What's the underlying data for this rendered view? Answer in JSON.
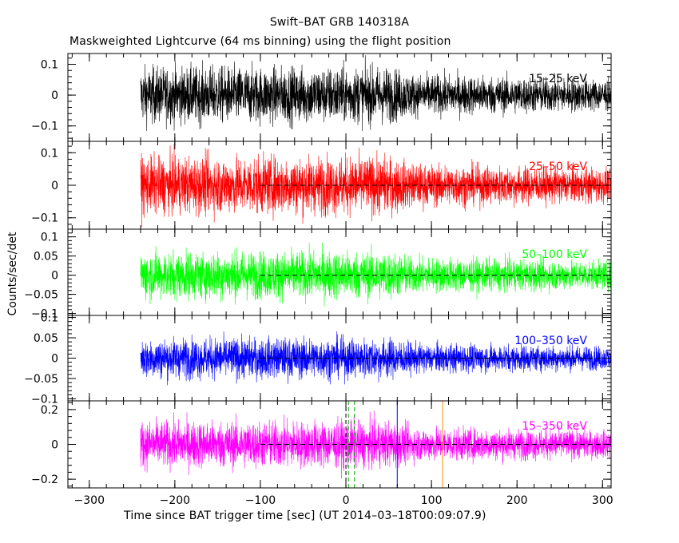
{
  "title": "Swift–BAT GRB 140318A",
  "subtitle": "Maskweighted Lightcurve (64 ms binning) using the flight position",
  "xlabel": "Time since BAT trigger time [sec] (UT 2014–03–18T00:09:07.9)",
  "ylabel": "Counts/sec/det",
  "chart_data": {
    "type": "line",
    "title": "Swift–BAT GRB 140318A",
    "subtitle": "Maskweighted Lightcurve (64 ms binning) using the flight position",
    "xlabel": "Time since BAT trigger time [sec] (UT 2014–03–18T00:09:07.9)",
    "ylabel": "Counts/sec/det",
    "xlim": [
      -325,
      310
    ],
    "x_ticks": [
      -300,
      -200,
      -100,
      0,
      100,
      200,
      300
    ],
    "x_tick_labels": [
      "−300",
      "−200",
      "−100",
      "0",
      "100",
      "200",
      "300"
    ],
    "data_range_x": [
      -240,
      310
    ],
    "binning_sec": 0.064,
    "grid": false,
    "panels": [
      {
        "band": "15–25 keV",
        "color": "#000000",
        "ylim": [
          -0.15,
          0.135
        ],
        "y_ticks": [
          -0.1,
          0,
          0.1
        ],
        "y_tick_labels": [
          "−0.1",
          "0",
          "0.1"
        ],
        "noise_envelope": [
          [
            -240,
            0.088
          ],
          [
            50,
            0.088
          ],
          [
            80,
            0.065
          ],
          [
            310,
            0.05
          ]
        ],
        "zero_line": false
      },
      {
        "band": "25–50 keV",
        "color": "#ff0000",
        "ylim": [
          -0.135,
          0.135
        ],
        "y_ticks": [
          -0.1,
          0,
          0.1
        ],
        "y_tick_labels": [
          "−0.1",
          "0",
          "0.1"
        ],
        "noise_envelope": [
          [
            -240,
            0.085
          ],
          [
            50,
            0.085
          ],
          [
            80,
            0.063
          ],
          [
            310,
            0.05
          ]
        ],
        "zero_line": true
      },
      {
        "band": "50–100 keV",
        "color": "#00ff00",
        "ylim": [
          -0.105,
          0.12
        ],
        "y_ticks": [
          -0.1,
          -0.05,
          0,
          0.05,
          0.1
        ],
        "y_tick_labels": [
          "−0.1",
          "−0.05",
          "0",
          "0.05",
          "0.1"
        ],
        "noise_envelope": [
          [
            -240,
            0.06
          ],
          [
            50,
            0.06
          ],
          [
            80,
            0.045
          ],
          [
            310,
            0.035
          ]
        ],
        "zero_line": true
      },
      {
        "band": "100–350 keV",
        "color": "#0000ff",
        "ylim": [
          -0.105,
          0.105
        ],
        "y_ticks": [
          -0.1,
          -0.05,
          0,
          0.05,
          0.1
        ],
        "y_tick_labels": [
          "−0.1",
          "−0.05",
          "0",
          "0.05",
          "0.1"
        ],
        "noise_envelope": [
          [
            -240,
            0.048
          ],
          [
            50,
            0.048
          ],
          [
            80,
            0.035
          ],
          [
            310,
            0.028
          ]
        ],
        "zero_line": true
      },
      {
        "band": "15–350 keV",
        "color": "#ff00ff",
        "ylim": [
          -0.25,
          0.25
        ],
        "y_ticks": [
          -0.2,
          0,
          0.2
        ],
        "y_tick_labels": [
          "−0.2",
          "0",
          "0.2"
        ],
        "noise_envelope": [
          [
            -240,
            0.13
          ],
          [
            50,
            0.13
          ],
          [
            80,
            0.095
          ],
          [
            310,
            0.075
          ]
        ],
        "zero_line": true
      }
    ],
    "markers": [
      {
        "x": 0,
        "color": "#000000",
        "style": "dashed"
      },
      {
        "x": 3,
        "color": "#00aa00",
        "style": "dashed"
      },
      {
        "x": 10,
        "color": "#00aa00",
        "style": "dashed"
      },
      {
        "x": 60,
        "color": "#0000ff",
        "style": "solid"
      },
      {
        "x": 113,
        "color": "#ff8c00",
        "style": "solid"
      }
    ]
  }
}
